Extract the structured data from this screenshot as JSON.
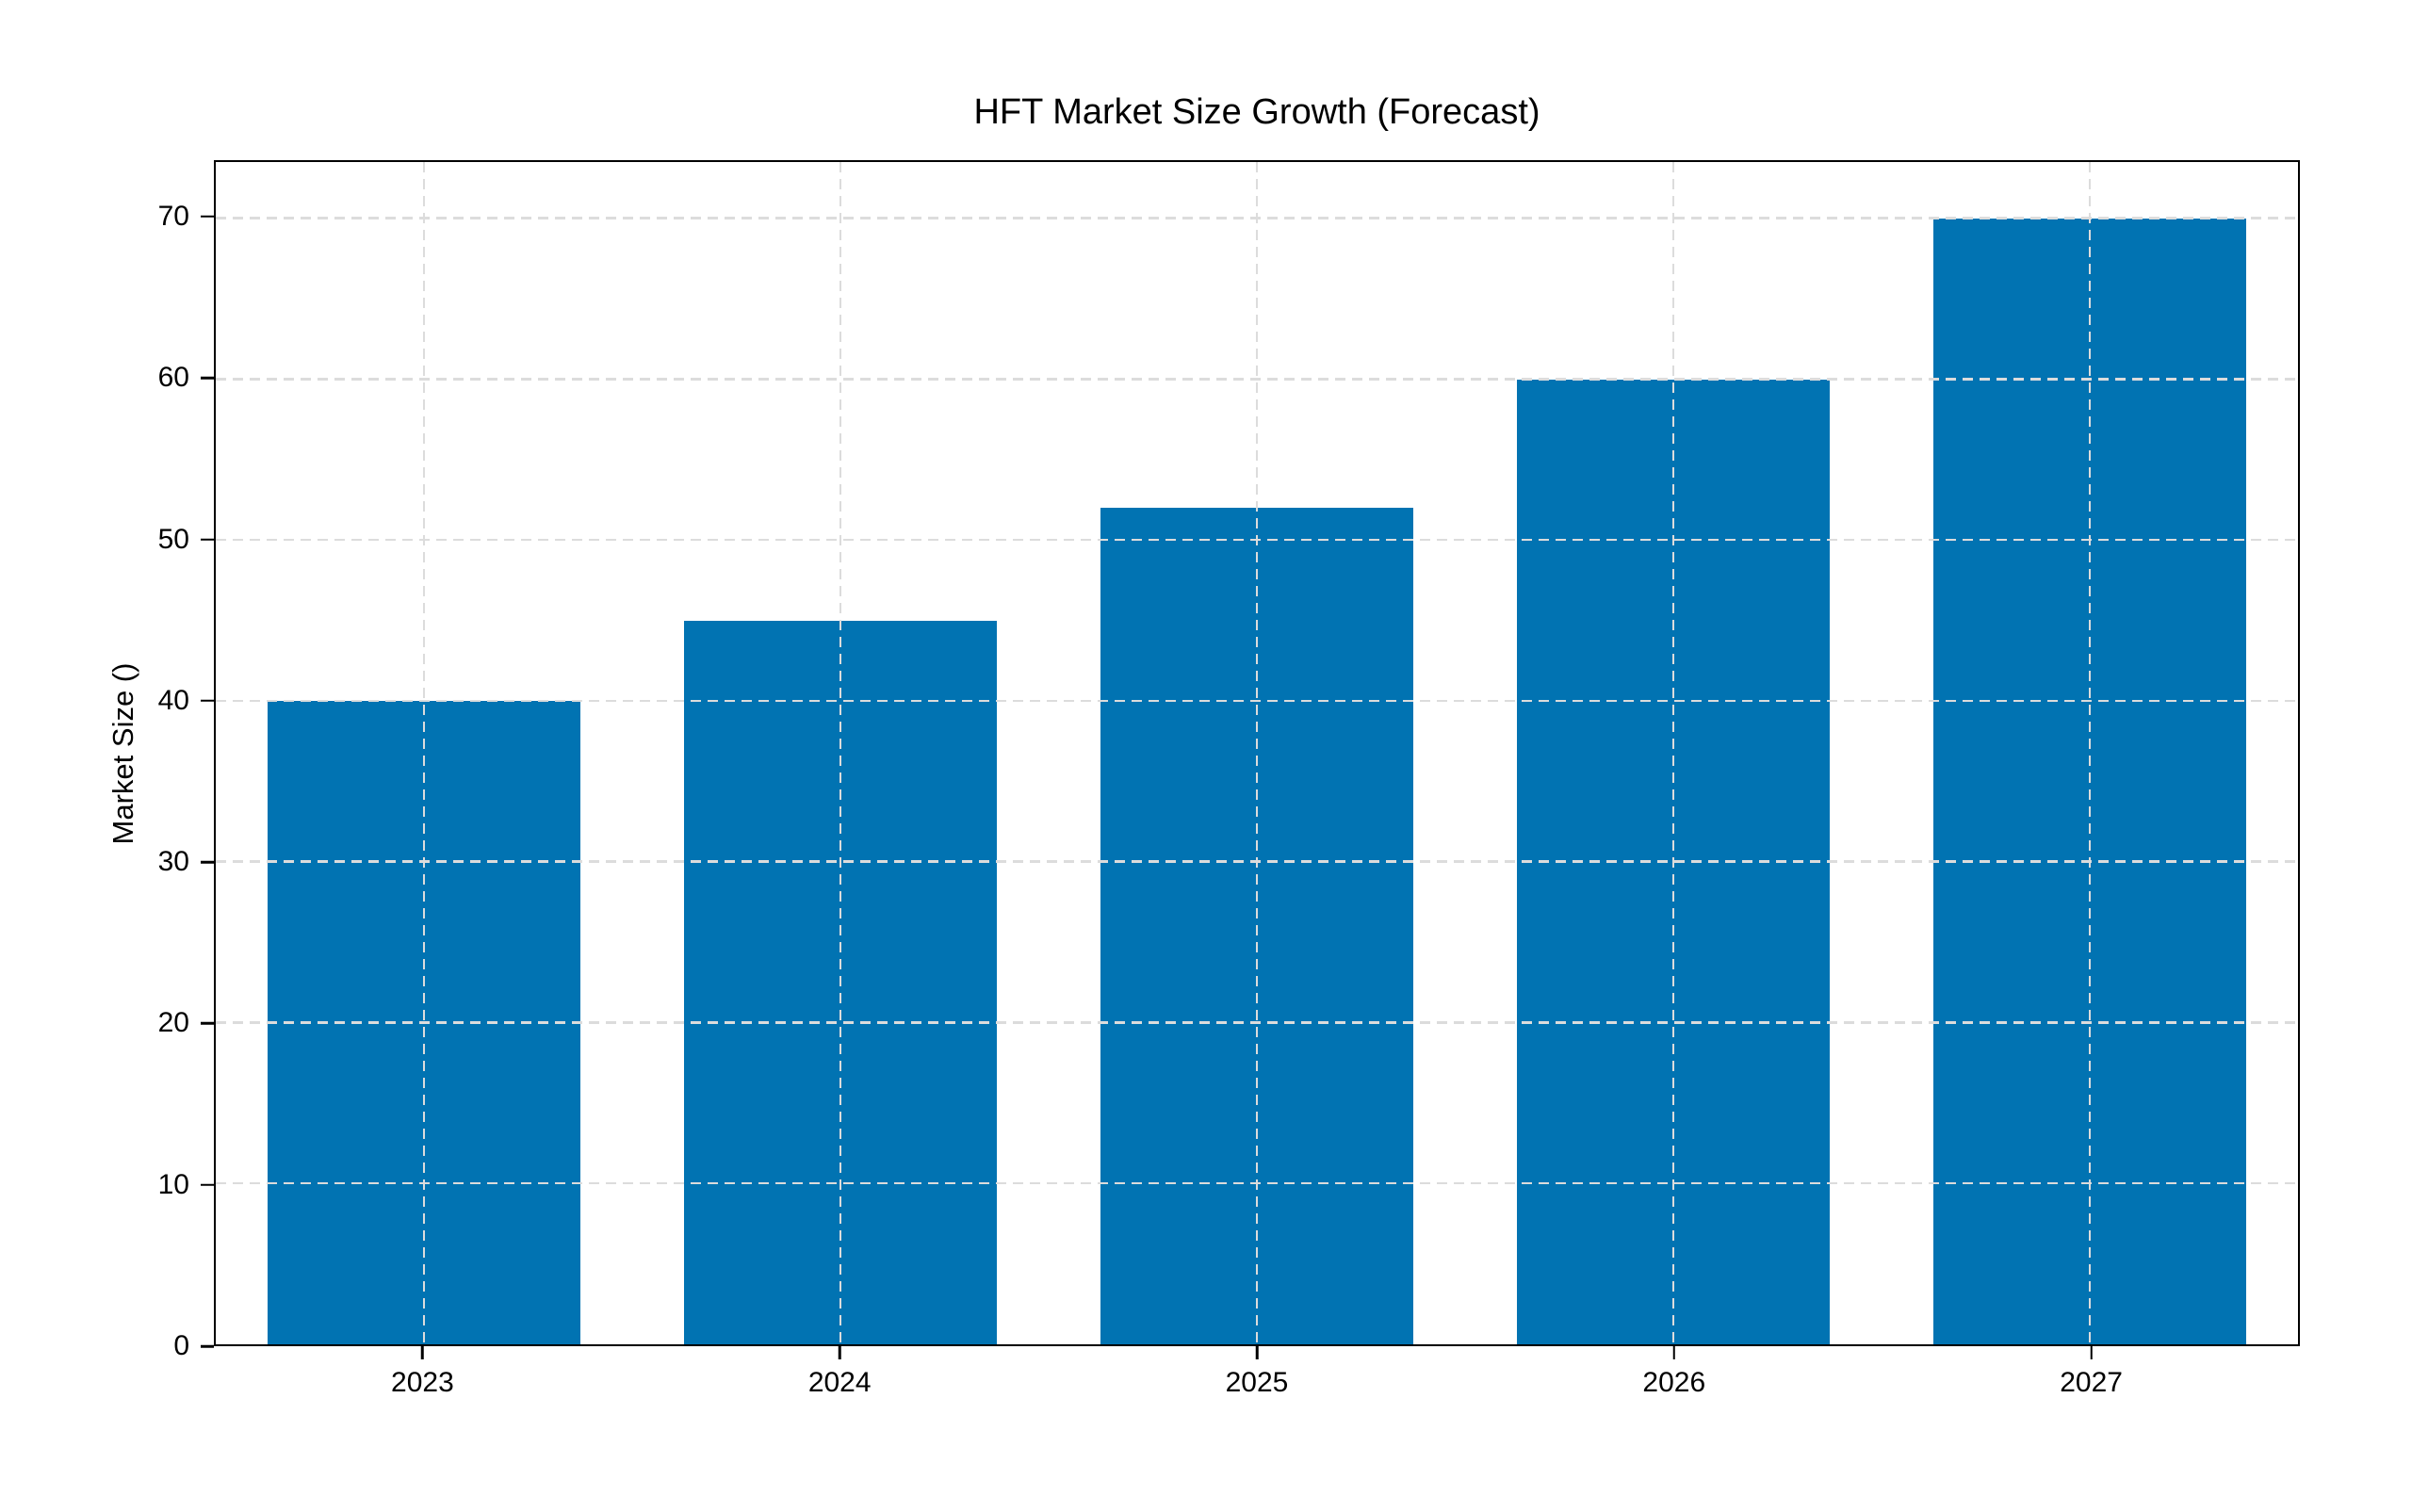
{
  "figure": {
    "background": "#ffffff",
    "text_color": "#000000"
  },
  "chart_data": {
    "type": "bar",
    "title": "HFT Market Size Growth (Forecast)",
    "categories": [
      "2023",
      "2024",
      "2025",
      "2026",
      "2027"
    ],
    "values": [
      40,
      45,
      52,
      60,
      70
    ],
    "xlabel": "",
    "ylabel": "Market Size ()",
    "ylim": [
      0,
      73.5
    ],
    "yticks": [
      0,
      10,
      20,
      30,
      40,
      50,
      60,
      70
    ],
    "bar_color": "#0173b2",
    "grid": {
      "horizontal": true,
      "vertical": true,
      "style": "dashed",
      "color": "#dcdcdc",
      "drawn_over_bars": true
    },
    "legend": "none",
    "spines": "full-box"
  }
}
